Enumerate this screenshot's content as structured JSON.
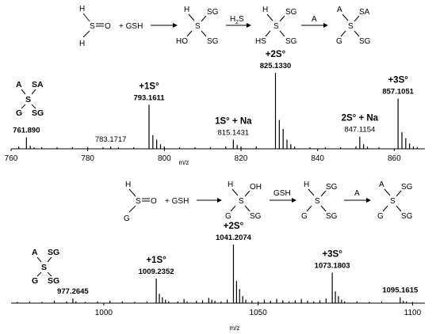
{
  "schemes": [
    {
      "id": "top",
      "reactant": {
        "top": "H",
        "center": "S",
        "right": "O",
        "bottom": "H"
      },
      "plus": "+ GSH",
      "intermediate1": {
        "center": "S",
        "tr": "SG",
        "br": "SG",
        "tl": "H",
        "bl": "HO"
      },
      "reagent1": {
        "main": "H",
        "sub": "2",
        "tail": "S"
      },
      "intermediate2": {
        "center": "S",
        "tr": "SG",
        "br": "SG",
        "tl": "H",
        "bl": "HS"
      },
      "reagent2": "A",
      "product": {
        "center": "S",
        "tr": "SA",
        "br": "SG",
        "tl": "A",
        "bl": "G"
      }
    },
    {
      "id": "bottom",
      "reactant": {
        "top": "H",
        "center": "S",
        "right": "O",
        "bottom": "G"
      },
      "plus": "+ GSH",
      "intermediate1": {
        "center": "S",
        "tr": "OH",
        "br": "SG",
        "tl": "H",
        "bl": "G"
      },
      "reagent1": "GSH",
      "intermediate2": {
        "center": "S",
        "tr": "SG",
        "br": "SG",
        "tl": "H",
        "bl": "G"
      },
      "reagent2": "A",
      "product": {
        "center": "S",
        "tr": "SG",
        "br": "SG",
        "tl": "A",
        "bl": "G"
      }
    }
  ],
  "chart_data": [
    {
      "type": "bar",
      "xlabel": "m/z",
      "ylabel": "",
      "xlim": [
        760,
        868
      ],
      "ylim": [
        0,
        100
      ],
      "xticks": [
        760,
        780,
        800,
        820,
        840,
        860
      ],
      "structure": {
        "tl": "A",
        "tr": "SA",
        "center": "S",
        "bl": "G",
        "br": "SG"
      },
      "annotations": [
        {
          "label": "",
          "mz": "761.890",
          "x": 764,
          "bold": true
        },
        {
          "label": "",
          "mz": "783.1717",
          "x": 786,
          "bold": false
        },
        {
          "label": "+1S°",
          "mz": "793.1611",
          "x": 796,
          "bold": true
        },
        {
          "label": "1S° + Na",
          "mz": "815.1431",
          "x": 818,
          "bold": false
        },
        {
          "label": "+2S°",
          "mz": "825.1330",
          "x": 829,
          "bold": true
        },
        {
          "label": "2S° + Na",
          "mz": "847.1154",
          "x": 851,
          "bold": false
        },
        {
          "label": "+3S°",
          "mz": "857.1051",
          "x": 861,
          "bold": true
        }
      ],
      "peaks": [
        {
          "x": 762,
          "y": 3
        },
        {
          "x": 764,
          "y": 15
        },
        {
          "x": 765,
          "y": 4
        },
        {
          "x": 766,
          "y": 2
        },
        {
          "x": 768,
          "y": 2
        },
        {
          "x": 772,
          "y": 2
        },
        {
          "x": 776,
          "y": 2
        },
        {
          "x": 780,
          "y": 2
        },
        {
          "x": 784,
          "y": 2
        },
        {
          "x": 786,
          "y": 3
        },
        {
          "x": 788,
          "y": 2
        },
        {
          "x": 792,
          "y": 2
        },
        {
          "x": 796,
          "y": 58
        },
        {
          "x": 797,
          "y": 18
        },
        {
          "x": 798,
          "y": 12
        },
        {
          "x": 799,
          "y": 6
        },
        {
          "x": 800,
          "y": 3
        },
        {
          "x": 804,
          "y": 2
        },
        {
          "x": 808,
          "y": 2
        },
        {
          "x": 812,
          "y": 2
        },
        {
          "x": 816,
          "y": 3
        },
        {
          "x": 818,
          "y": 12
        },
        {
          "x": 819,
          "y": 5
        },
        {
          "x": 820,
          "y": 3
        },
        {
          "x": 824,
          "y": 3
        },
        {
          "x": 829,
          "y": 100
        },
        {
          "x": 830,
          "y": 38
        },
        {
          "x": 831,
          "y": 26
        },
        {
          "x": 832,
          "y": 12
        },
        {
          "x": 833,
          "y": 6
        },
        {
          "x": 834,
          "y": 3
        },
        {
          "x": 838,
          "y": 2
        },
        {
          "x": 842,
          "y": 2
        },
        {
          "x": 846,
          "y": 2
        },
        {
          "x": 850,
          "y": 3
        },
        {
          "x": 851,
          "y": 16
        },
        {
          "x": 852,
          "y": 6
        },
        {
          "x": 853,
          "y": 3
        },
        {
          "x": 856,
          "y": 2
        },
        {
          "x": 861,
          "y": 66
        },
        {
          "x": 862,
          "y": 22
        },
        {
          "x": 863,
          "y": 14
        },
        {
          "x": 864,
          "y": 7
        },
        {
          "x": 865,
          "y": 3
        },
        {
          "x": 866,
          "y": 2
        }
      ]
    },
    {
      "type": "bar",
      "xlabel": "m/z",
      "ylabel": "",
      "xlim": [
        970,
        1104
      ],
      "ylim": [
        0,
        100
      ],
      "xticks": [
        1000,
        1050,
        1100
      ],
      "structure": {
        "tl": "A",
        "tr": "SG",
        "center": "S",
        "bl": "G",
        "br": "SG"
      },
      "annotations": [
        {
          "label": "",
          "mz": "977.2645",
          "x": 990,
          "bold": true
        },
        {
          "label": "+1S°",
          "mz": "1009.2352",
          "x": 1017,
          "bold": true
        },
        {
          "label": "+2S°",
          "mz": "1041.2074",
          "x": 1042,
          "bold": true
        },
        {
          "label": "+3S°",
          "mz": "1073.1803",
          "x": 1074,
          "bold": true
        },
        {
          "label": "",
          "mz": "1095.1615",
          "x": 1096,
          "bold": true
        }
      ],
      "peaks": [
        {
          "x": 972,
          "y": 2
        },
        {
          "x": 976,
          "y": 3
        },
        {
          "x": 980,
          "y": 2
        },
        {
          "x": 984,
          "y": 4
        },
        {
          "x": 988,
          "y": 3
        },
        {
          "x": 990,
          "y": 8
        },
        {
          "x": 991,
          "y": 3
        },
        {
          "x": 994,
          "y": 2
        },
        {
          "x": 998,
          "y": 3
        },
        {
          "x": 1002,
          "y": 4
        },
        {
          "x": 1006,
          "y": 3
        },
        {
          "x": 1010,
          "y": 2
        },
        {
          "x": 1014,
          "y": 3
        },
        {
          "x": 1017,
          "y": 42
        },
        {
          "x": 1018,
          "y": 16
        },
        {
          "x": 1019,
          "y": 10
        },
        {
          "x": 1020,
          "y": 6
        },
        {
          "x": 1021,
          "y": 3
        },
        {
          "x": 1024,
          "y": 3
        },
        {
          "x": 1026,
          "y": 7
        },
        {
          "x": 1027,
          "y": 3
        },
        {
          "x": 1030,
          "y": 4
        },
        {
          "x": 1032,
          "y": 5
        },
        {
          "x": 1034,
          "y": 9
        },
        {
          "x": 1035,
          "y": 6
        },
        {
          "x": 1036,
          "y": 4
        },
        {
          "x": 1038,
          "y": 3
        },
        {
          "x": 1040,
          "y": 6
        },
        {
          "x": 1042,
          "y": 100
        },
        {
          "x": 1043,
          "y": 38
        },
        {
          "x": 1044,
          "y": 24
        },
        {
          "x": 1045,
          "y": 12
        },
        {
          "x": 1046,
          "y": 6
        },
        {
          "x": 1048,
          "y": 4
        },
        {
          "x": 1050,
          "y": 3
        },
        {
          "x": 1052,
          "y": 6
        },
        {
          "x": 1054,
          "y": 4
        },
        {
          "x": 1056,
          "y": 7
        },
        {
          "x": 1058,
          "y": 5
        },
        {
          "x": 1060,
          "y": 3
        },
        {
          "x": 1062,
          "y": 5
        },
        {
          "x": 1064,
          "y": 7
        },
        {
          "x": 1066,
          "y": 4
        },
        {
          "x": 1068,
          "y": 3
        },
        {
          "x": 1070,
          "y": 5
        },
        {
          "x": 1072,
          "y": 8
        },
        {
          "x": 1074,
          "y": 52
        },
        {
          "x": 1075,
          "y": 20
        },
        {
          "x": 1076,
          "y": 12
        },
        {
          "x": 1077,
          "y": 6
        },
        {
          "x": 1078,
          "y": 3
        },
        {
          "x": 1082,
          "y": 3
        },
        {
          "x": 1086,
          "y": 2
        },
        {
          "x": 1090,
          "y": 3
        },
        {
          "x": 1096,
          "y": 10
        },
        {
          "x": 1097,
          "y": 4
        },
        {
          "x": 1098,
          "y": 3
        },
        {
          "x": 1100,
          "y": 2
        }
      ]
    }
  ]
}
